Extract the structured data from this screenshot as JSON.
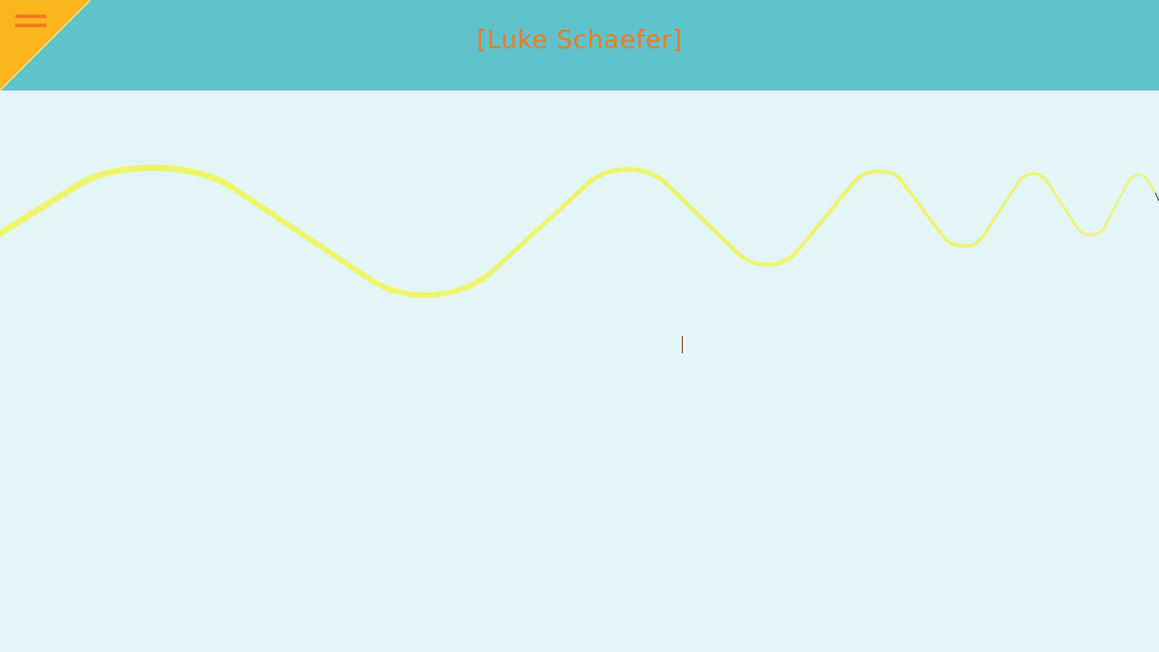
{
  "header": {
    "title": "[Luke Schaefer]",
    "menu_icon": "hamburger-menu-icon",
    "background_color": "#60c3cb",
    "corner_color": "#fbb61d",
    "accent_color": "#f07a22"
  },
  "main": {
    "background_color": "#e3f5f6",
    "wave_color": "#eef56b"
  }
}
